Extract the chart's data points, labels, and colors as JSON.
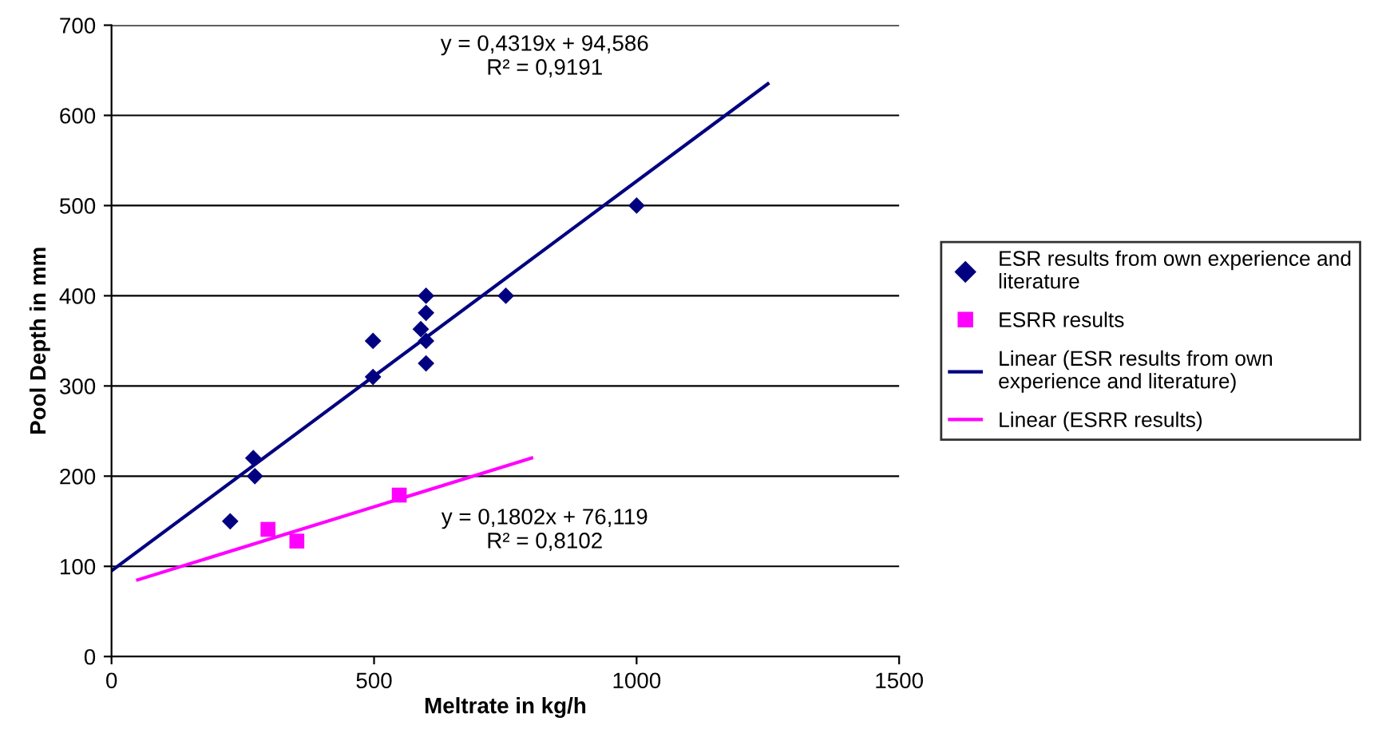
{
  "chart_data": {
    "type": "scatter",
    "xlabel": "Meltrate in kg/h",
    "ylabel": "Pool Depth in mm",
    "xlim": [
      0,
      1500
    ],
    "xticks": [
      0,
      500,
      1000,
      1500
    ],
    "ylim": [
      0,
      700
    ],
    "yticks": [
      0,
      100,
      200,
      300,
      400,
      500,
      600,
      700
    ],
    "grid": "y",
    "legend": "right",
    "series": [
      {
        "name": "ESR results from own experience and literature",
        "marker": "diamond",
        "color": "#000080",
        "x": [
          226,
          270,
          273,
          498,
          498,
          599,
          599,
          589,
          599,
          599,
          751,
          1000
        ],
        "values": [
          150,
          220,
          200,
          350,
          310,
          400,
          381,
          363,
          350,
          325,
          400,
          500
        ]
      },
      {
        "name": "ESRR results",
        "marker": "square",
        "color": "#ff00ff",
        "x": [
          298,
          353,
          548
        ],
        "values": [
          141,
          128,
          179
        ]
      },
      {
        "name": "Linear (ESR results from own experience and literature)",
        "type": "line",
        "marker": "none",
        "color": "#000080",
        "x": [
          0,
          1250
        ],
        "values": [
          95,
          635
        ]
      },
      {
        "name": "Linear (ESRR results)",
        "type": "line",
        "marker": "none",
        "color": "#ff00ff",
        "x": [
          50,
          800
        ],
        "values": [
          85,
          220
        ]
      }
    ],
    "annotations": [
      "y = 0,4319x + 94,586\nR² = 0,9191",
      "y = 0,1802x + 76,119\nR² = 0,8102"
    ]
  }
}
